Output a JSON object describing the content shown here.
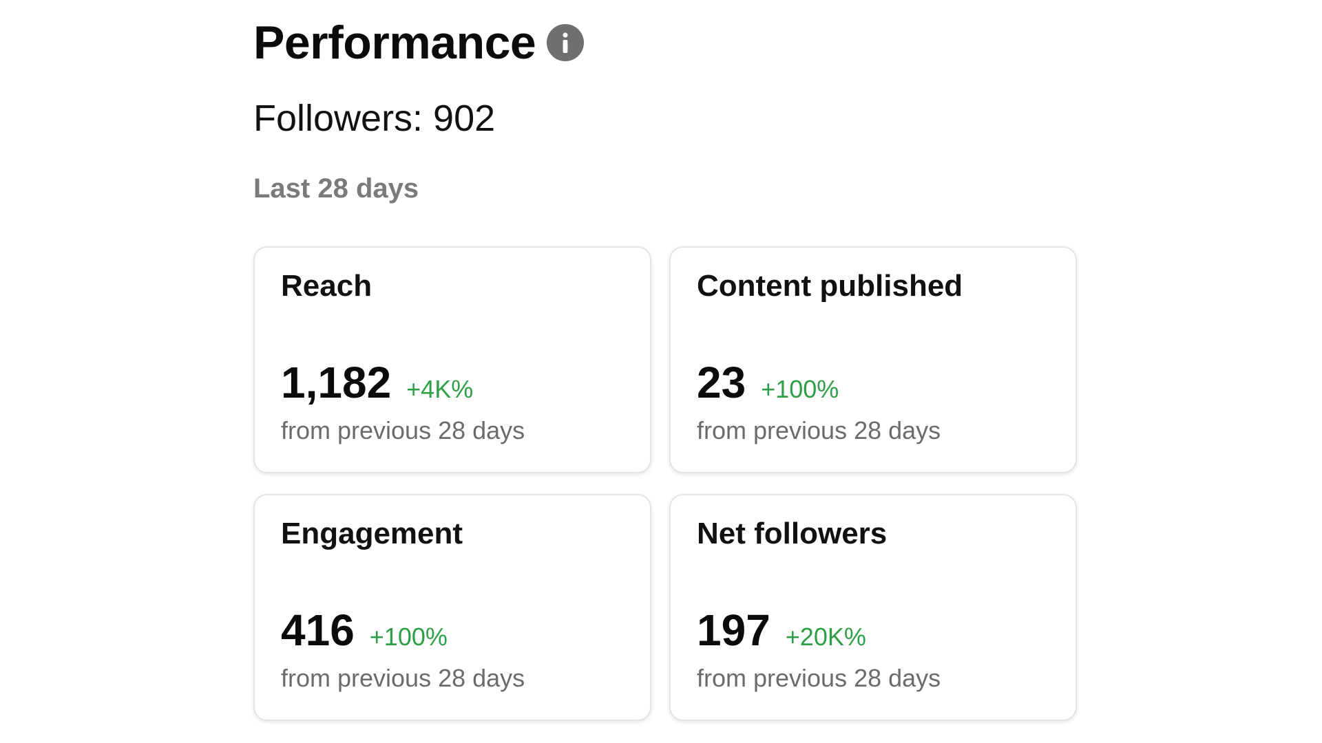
{
  "header": {
    "title": "Performance",
    "info_icon": "info-icon"
  },
  "followers_text": "Followers: 902",
  "period_label": "Last 28 days",
  "cards": [
    {
      "title": "Reach",
      "value": "1,182",
      "change": "+4K%",
      "subtext": "from previous 28 days"
    },
    {
      "title": "Content published",
      "value": "23",
      "change": "+100%",
      "subtext": "from previous 28 days"
    },
    {
      "title": "Engagement",
      "value": "416",
      "change": "+100%",
      "subtext": "from previous 28 days"
    },
    {
      "title": "Net followers",
      "value": "197",
      "change": "+20K%",
      "subtext": "from previous 28 days"
    }
  ],
  "colors": {
    "positive_change": "#2e9e47",
    "info_icon_bg": "#6f6f6f",
    "muted_text": "#7a7a7a"
  }
}
